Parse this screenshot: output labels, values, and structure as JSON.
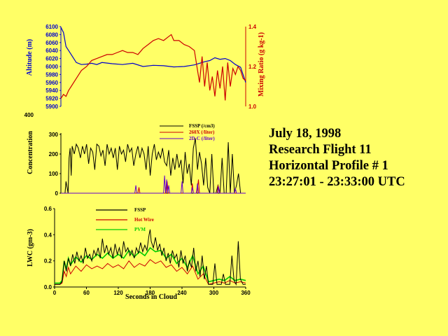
{
  "info": {
    "date": "July 18, 1998",
    "flight": "Research Flight 11",
    "profile": "Horizontal Profile # 1",
    "time_range": "23:27:01 - 23:33:00 UTC"
  },
  "colors": {
    "background": "#ffff66",
    "altitude": "#0000cc",
    "mixing_ratio": "#cc0000",
    "fssp": "#000000",
    "c260x": "#cc0000",
    "c2dc": "#6600cc",
    "hotwire": "#cc0000",
    "pvm": "#00cc00"
  },
  "chart_data": [
    {
      "type": "line",
      "ylabel": "Altitude (m)",
      "y2label": "Mixing Ratio (g kg-1)",
      "yticks": [
        "6100",
        "6080",
        "6060",
        "6040",
        "6020",
        "6000",
        "5980",
        "5960",
        "5940",
        "5920",
        "5900"
      ],
      "y2ticks": [
        "1.4",
        "1.2",
        "1.0"
      ],
      "ylim": [
        5900,
        6100
      ],
      "y2lim": [
        1.0,
        1.4
      ],
      "xlim": [
        0,
        360
      ],
      "legend": "none",
      "series": [
        {
          "key": "altitude",
          "axis": "left",
          "x": [
            0,
            5,
            10,
            15,
            20,
            30,
            40,
            50,
            60,
            70,
            80,
            100,
            120,
            140,
            160,
            180,
            200,
            220,
            240,
            260,
            270,
            280,
            290,
            300,
            310,
            320,
            330,
            340,
            350,
            360
          ],
          "y": [
            6098,
            6085,
            6050,
            6040,
            6030,
            6010,
            6005,
            6006,
            6008,
            6005,
            6010,
            6007,
            6005,
            6008,
            6000,
            6003,
            6002,
            5999,
            6000,
            6004,
            6008,
            6012,
            6015,
            6022,
            6018,
            6020,
            6015,
            6005,
            5998,
            5960
          ]
        },
        {
          "key": "mixing_ratio",
          "axis": "right",
          "x": [
            0,
            5,
            10,
            15,
            20,
            30,
            40,
            50,
            60,
            70,
            80,
            90,
            100,
            110,
            120,
            130,
            140,
            150,
            160,
            170,
            180,
            190,
            200,
            210,
            215,
            220,
            230,
            240,
            250,
            260,
            265,
            270,
            275,
            280,
            285,
            290,
            295,
            300,
            305,
            310,
            315,
            320,
            325,
            330,
            335,
            340,
            345,
            350,
            355,
            360
          ],
          "y": [
            1.04,
            1.06,
            1.05,
            1.08,
            1.1,
            1.14,
            1.18,
            1.2,
            1.23,
            1.24,
            1.25,
            1.26,
            1.26,
            1.27,
            1.28,
            1.27,
            1.27,
            1.26,
            1.29,
            1.31,
            1.33,
            1.34,
            1.33,
            1.35,
            1.36,
            1.33,
            1.33,
            1.31,
            1.3,
            1.28,
            1.2,
            1.12,
            1.25,
            1.1,
            1.22,
            1.08,
            1.15,
            1.05,
            1.18,
            1.09,
            1.2,
            1.03,
            1.22,
            1.1,
            1.19,
            1.16,
            1.2,
            1.18,
            1.14,
            1.13
          ]
        }
      ]
    },
    {
      "type": "line",
      "ylabel": "Concentration",
      "yticks": [
        "0",
        "100",
        "200",
        "300"
      ],
      "ylim": [
        0,
        300
      ],
      "xlim": [
        0,
        360
      ],
      "legend": "top-right",
      "series": [
        {
          "key": "fssp",
          "name": "FSSP (/cm3)",
          "x": [
            0,
            8,
            10,
            14,
            16,
            18,
            20,
            22,
            26,
            30,
            34,
            38,
            42,
            46,
            50,
            54,
            58,
            62,
            66,
            70,
            74,
            78,
            82,
            86,
            90,
            94,
            98,
            102,
            106,
            110,
            114,
            118,
            122,
            126,
            130,
            134,
            138,
            142,
            146,
            150,
            154,
            158,
            162,
            166,
            170,
            174,
            178,
            182,
            186,
            190,
            194,
            198,
            202,
            206,
            210,
            214,
            218,
            222,
            226,
            230,
            234,
            238,
            242,
            246,
            250,
            254,
            258,
            262,
            266,
            270,
            274,
            278,
            282,
            286,
            290,
            294,
            298,
            302,
            306,
            310,
            314,
            318,
            322,
            326,
            330,
            334,
            338,
            342,
            346,
            350,
            355,
            360
          ],
          "y": [
            0,
            0,
            60,
            0,
            180,
            230,
            90,
            240,
            200,
            250,
            230,
            180,
            240,
            200,
            250,
            150,
            230,
            210,
            120,
            250,
            240,
            190,
            220,
            140,
            250,
            200,
            230,
            180,
            230,
            120,
            240,
            200,
            220,
            160,
            250,
            210,
            230,
            140,
            200,
            240,
            180,
            230,
            200,
            120,
            240,
            90,
            200,
            250,
            170,
            210,
            180,
            230,
            160,
            140,
            220,
            90,
            180,
            120,
            200,
            130,
            170,
            50,
            210,
            100,
            150,
            40,
            230,
            280,
            120,
            210,
            150,
            40,
            180,
            30,
            0,
            200,
            0,
            0,
            40,
            0,
            180,
            0,
            0,
            260,
            0,
            200,
            0,
            40,
            100,
            0,
            0,
            0
          ]
        },
        {
          "key": "c260x",
          "name": "260X (/liter)",
          "x": [
            0,
            150,
            152,
            154,
            156,
            200,
            205,
            207,
            209,
            212,
            250,
            254,
            256,
            258,
            262,
            265,
            268,
            270,
            272,
            275,
            300,
            305,
            306,
            310,
            360
          ],
          "y": [
            0,
            0,
            30,
            0,
            0,
            0,
            0,
            60,
            0,
            0,
            0,
            0,
            50,
            0,
            0,
            0,
            70,
            0,
            0,
            0,
            0,
            0,
            40,
            0,
            0
          ]
        },
        {
          "key": "c2dc",
          "name": "2D-C (/liter)",
          "x": [
            0,
            140,
            144,
            146,
            148,
            150,
            195,
            200,
            202,
            204,
            206,
            208,
            210,
            212,
            230,
            234,
            236,
            238,
            252,
            254,
            256,
            258,
            262,
            264,
            266,
            268,
            300,
            306,
            307,
            309,
            336,
            338,
            340,
            342,
            360
          ],
          "y": [
            0,
            0,
            0,
            40,
            0,
            0,
            0,
            0,
            90,
            0,
            70,
            0,
            40,
            0,
            0,
            0,
            60,
            0,
            0,
            0,
            30,
            0,
            0,
            0,
            50,
            0,
            0,
            0,
            35,
            0,
            0,
            0,
            25,
            0,
            0
          ]
        }
      ]
    },
    {
      "type": "line",
      "xlabel": "Seconds in Cloud",
      "ylabel": "LWC (gm-3)",
      "xticks": [
        "0",
        "60",
        "120",
        "180",
        "240",
        "300",
        "360"
      ],
      "yticks": [
        "0.0",
        "0.2",
        "0.4",
        "0.6"
      ],
      "ylim": [
        0,
        0.6
      ],
      "xlim": [
        0,
        360
      ],
      "legend": "top-center",
      "series": [
        {
          "key": "fssp",
          "name": "FSSP",
          "x": [
            0,
            10,
            14,
            18,
            22,
            26,
            30,
            34,
            38,
            42,
            46,
            50,
            54,
            58,
            62,
            66,
            70,
            74,
            78,
            82,
            86,
            90,
            94,
            98,
            102,
            106,
            110,
            114,
            118,
            122,
            126,
            130,
            134,
            138,
            142,
            146,
            150,
            154,
            158,
            162,
            166,
            170,
            174,
            178,
            180,
            182,
            186,
            190,
            194,
            198,
            202,
            206,
            210,
            214,
            218,
            222,
            226,
            230,
            234,
            238,
            242,
            246,
            250,
            254,
            258,
            262,
            266,
            270,
            274,
            278,
            282,
            286,
            290,
            294,
            298,
            302,
            306,
            310,
            314,
            318,
            322,
            326,
            330,
            334,
            338,
            342,
            346,
            350,
            355,
            360
          ],
          "y": [
            0.02,
            0.02,
            0.04,
            0.2,
            0.12,
            0.22,
            0.16,
            0.25,
            0.18,
            0.27,
            0.2,
            0.24,
            0.18,
            0.3,
            0.22,
            0.25,
            0.2,
            0.28,
            0.24,
            0.3,
            0.22,
            0.37,
            0.26,
            0.32,
            0.25,
            0.3,
            0.22,
            0.33,
            0.25,
            0.3,
            0.22,
            0.35,
            0.27,
            0.3,
            0.24,
            0.28,
            0.22,
            0.3,
            0.26,
            0.34,
            0.27,
            0.32,
            0.28,
            0.4,
            0.44,
            0.35,
            0.3,
            0.38,
            0.28,
            0.33,
            0.24,
            0.3,
            0.2,
            0.26,
            0.18,
            0.28,
            0.22,
            0.25,
            0.15,
            0.28,
            0.18,
            0.24,
            0.12,
            0.2,
            0.15,
            0.3,
            0.12,
            0.2,
            0.08,
            0.24,
            0.06,
            0.16,
            0.02,
            0.02,
            0.02,
            0.18,
            0.02,
            0.02,
            0.02,
            0.1,
            0.02,
            0.02,
            0.02,
            0.24,
            0.05,
            0.02,
            0.35,
            0.06,
            0.02,
            0.02
          ]
        },
        {
          "key": "hotwire",
          "name": "Hot Wire",
          "x": [
            0,
            10,
            14,
            18,
            22,
            26,
            30,
            40,
            50,
            60,
            70,
            80,
            90,
            100,
            110,
            120,
            130,
            140,
            150,
            160,
            170,
            180,
            190,
            200,
            210,
            220,
            230,
            240,
            250,
            260,
            270,
            280,
            290,
            300,
            310,
            320,
            330,
            340,
            350,
            360
          ],
          "y": [
            0.02,
            0.02,
            0.03,
            0.12,
            0.08,
            0.15,
            0.1,
            0.16,
            0.12,
            0.17,
            0.14,
            0.16,
            0.14,
            0.18,
            0.15,
            0.17,
            0.14,
            0.2,
            0.15,
            0.18,
            0.16,
            0.21,
            0.18,
            0.2,
            0.15,
            0.17,
            0.12,
            0.15,
            0.1,
            0.16,
            0.06,
            0.1,
            0.02,
            0.03,
            0.04,
            0.03,
            0.05,
            0.03,
            0.04,
            0.03
          ]
        },
        {
          "key": "pvm",
          "name": "PVM",
          "x": [
            0,
            10,
            14,
            18,
            22,
            26,
            30,
            40,
            50,
            60,
            70,
            80,
            90,
            100,
            110,
            120,
            130,
            140,
            150,
            160,
            170,
            180,
            190,
            200,
            210,
            220,
            230,
            240,
            250,
            260,
            270,
            280,
            290,
            300,
            310,
            320,
            330,
            340,
            350,
            360
          ],
          "y": [
            0.03,
            0.03,
            0.05,
            0.2,
            0.14,
            0.22,
            0.17,
            0.23,
            0.19,
            0.24,
            0.21,
            0.25,
            0.22,
            0.26,
            0.22,
            0.25,
            0.22,
            0.28,
            0.23,
            0.27,
            0.24,
            0.3,
            0.27,
            0.28,
            0.22,
            0.25,
            0.18,
            0.22,
            0.15,
            0.24,
            0.1,
            0.16,
            0.04,
            0.05,
            0.06,
            0.05,
            0.08,
            0.05,
            0.06,
            0.05
          ]
        }
      ]
    }
  ]
}
